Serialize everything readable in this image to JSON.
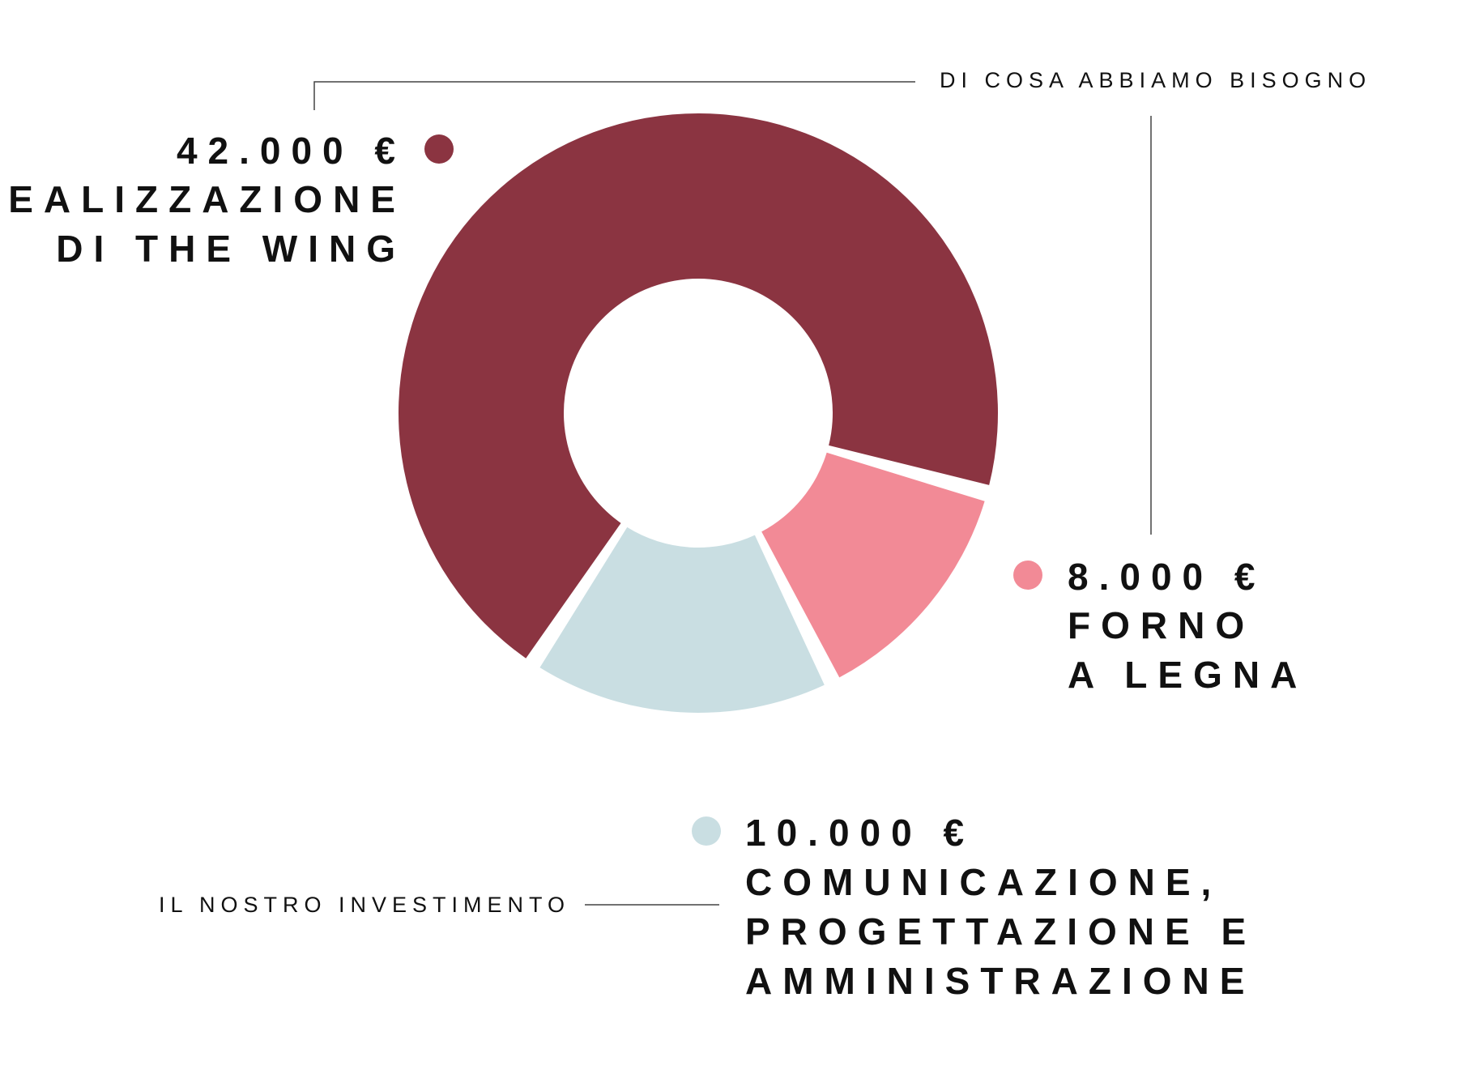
{
  "header": {
    "top_caption": "DI COSA ABBIAMO BISOGNO",
    "bottom_caption": "IL NOSTRO INVESTIMENTO"
  },
  "chart_data": {
    "type": "pie",
    "style": "donut",
    "currency": "€",
    "total": 60000,
    "slices": [
      {
        "amount_label": "42.000 €",
        "value": 42000,
        "label_lines": [
          "REALIZZAZIONE",
          "DI THE WING"
        ],
        "color": "#8B3441"
      },
      {
        "amount_label": "8.000 €",
        "value": 8000,
        "label_lines": [
          "FORNO",
          "A LEGNA"
        ],
        "color": "#F28A96"
      },
      {
        "amount_label": "10.000 €",
        "value": 10000,
        "label_lines": [
          "COMUNICAZIONE,",
          "PROGETTAZIONE E",
          "AMMINISTRAZIONE"
        ],
        "color": "#C9DEE2"
      }
    ]
  }
}
